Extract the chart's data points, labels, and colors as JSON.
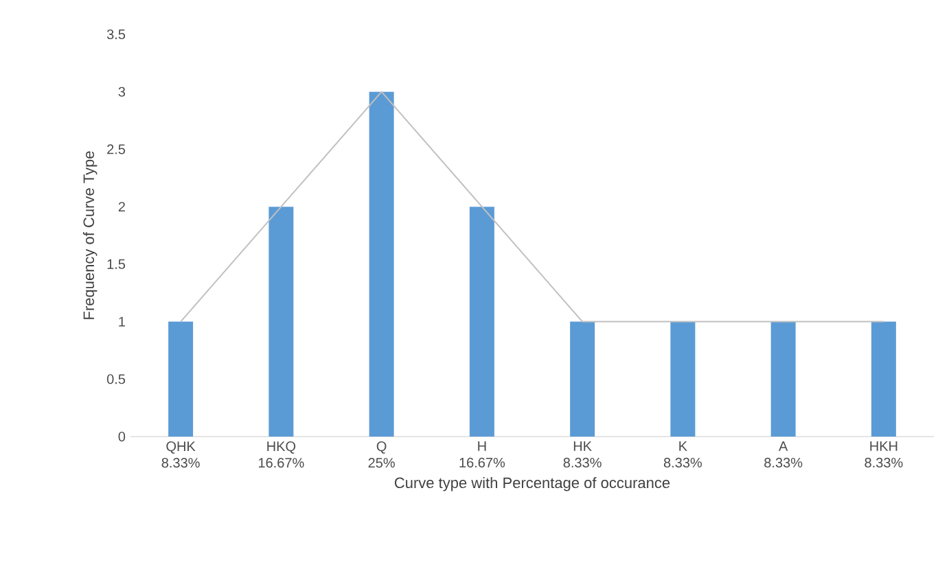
{
  "chart_data": {
    "type": "bar",
    "xlabel": "Curve type with Percentage of occurance",
    "ylabel": "Frequency of Curve Type",
    "categories": [
      "QHK 8.33%",
      "HKQ 16.67%",
      "Q 25%",
      "H 16.67%",
      "HK 8.33%",
      "K 8.33%",
      "A 8.33%",
      "HKH 8.33%"
    ],
    "series": [
      {
        "color": "#5b9bd5",
        "values": [
          1,
          2,
          3,
          2,
          1,
          1,
          1,
          1
        ]
      },
      {
        "type": "line",
        "color": "#c0c0c0",
        "values": [
          1,
          2,
          3,
          2,
          1,
          1,
          1,
          1
        ]
      }
    ],
    "ylim": [
      0,
      3.5
    ],
    "yticks": [
      0,
      0.5,
      1,
      1.5,
      2,
      2.5,
      3,
      3.5
    ],
    "grid": false
  }
}
